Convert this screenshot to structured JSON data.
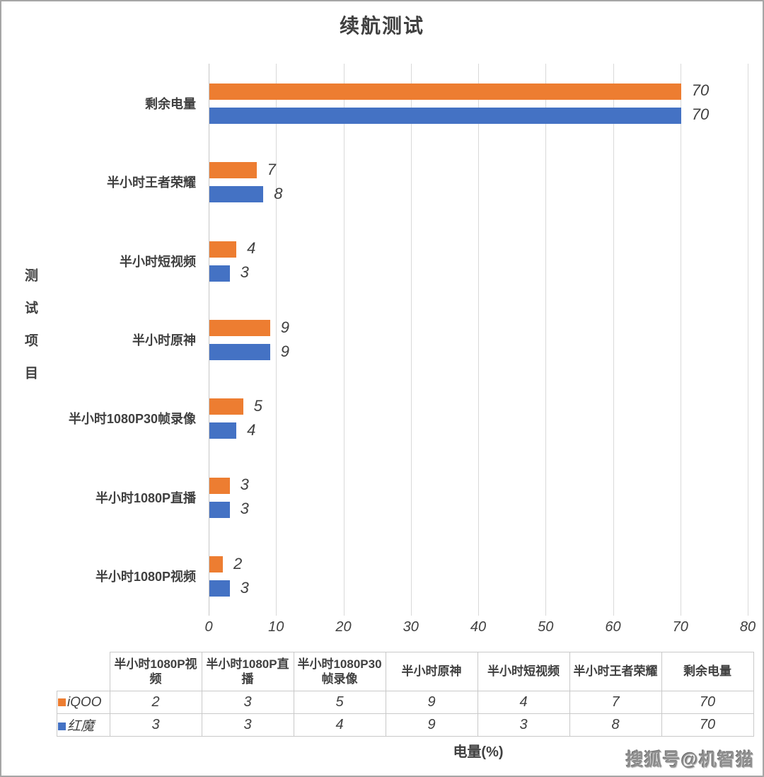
{
  "title": "续航测试",
  "watermark": "搜狐号@机智猫",
  "colors": {
    "iqoo_orange": "#ED7D31",
    "hongmo_blue": "#4472C4",
    "gridline": "#D9D9D9",
    "text": "#404040",
    "frame_border": "#A6A6A6"
  },
  "chart_data": {
    "type": "bar",
    "orientation": "horizontal",
    "title": "续航测试",
    "category_axis_label": "测试项目",
    "categories_top_to_bottom": [
      "剩余电量",
      "半小时王者荣耀",
      "半小时短视频",
      "半小时原神",
      "半小时1080P30帧录像",
      "半小时1080P直播",
      "半小时1080P视频"
    ],
    "series": [
      {
        "name": "iQOO",
        "color": "#ED7D31",
        "values": [
          70,
          7,
          4,
          9,
          5,
          3,
          2
        ]
      },
      {
        "name": "红魔",
        "color": "#4472C4",
        "values": [
          70,
          8,
          3,
          9,
          4,
          3,
          3
        ]
      }
    ],
    "value_axis": {
      "label": "电量(%)",
      "min": 0,
      "max": 80,
      "tick_step": 10,
      "ticks": [
        0,
        10,
        20,
        30,
        40,
        50,
        60,
        70,
        80
      ]
    },
    "grid": true,
    "data_labels": true,
    "legend_position": "table-left"
  },
  "table": {
    "columns": [
      "半小时1080P视频",
      "半小时1080P直播",
      "半小时1080P30帧录像",
      "半小时原神",
      "半小时短视频",
      "半小时王者荣耀",
      "剩余电量"
    ],
    "rows": [
      {
        "name": "iQOO",
        "color": "#ED7D31",
        "values": [
          2,
          3,
          5,
          9,
          4,
          7,
          70
        ]
      },
      {
        "name": "红魔",
        "color": "#4472C4",
        "values": [
          3,
          3,
          4,
          9,
          3,
          8,
          70
        ]
      }
    ]
  }
}
